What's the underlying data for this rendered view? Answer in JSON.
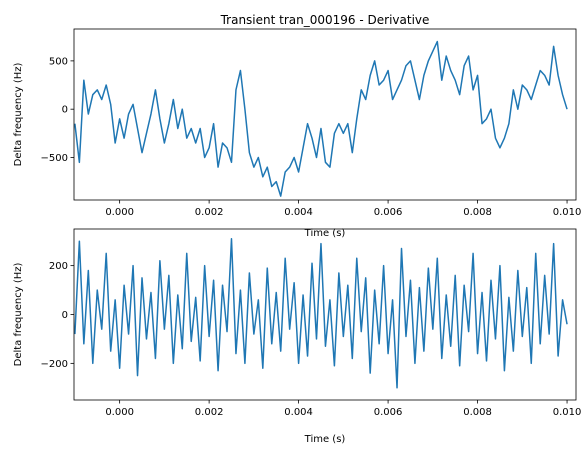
{
  "figure": {
    "background": "#ffffff"
  },
  "chart_data": [
    {
      "type": "line",
      "title": "Transient tran_000196 - Derivative",
      "xlabel": "Time (s)",
      "ylabel": "Delta frequency (Hz)",
      "xlim": [
        -0.00102,
        0.0102
      ],
      "ylim": [
        -940,
        830
      ],
      "xticks": [
        0.0,
        0.002,
        0.004,
        0.006,
        0.008,
        0.01
      ],
      "xtick_labels": [
        "0.000",
        "0.002",
        "0.004",
        "0.006",
        "0.008",
        "0.010"
      ],
      "yticks": [
        -500,
        0,
        500
      ],
      "ytick_labels": [
        "−500",
        "0",
        "500"
      ],
      "grid": false,
      "color": "#1f77b4",
      "series": [
        {
          "x": [
            -0.001,
            -0.0009,
            -0.0008,
            -0.0007,
            -0.0006,
            -0.0005,
            -0.0004,
            -0.0003,
            -0.0002,
            -0.0001,
            0.0,
            0.0001,
            0.0002,
            0.0003,
            0.0004,
            0.0005,
            0.0006,
            0.0007,
            0.0008,
            0.0009,
            0.001,
            0.0011,
            0.0012,
            0.0013,
            0.0014,
            0.0015,
            0.0016,
            0.0017,
            0.0018,
            0.0019,
            0.002,
            0.0021,
            0.0022,
            0.0023,
            0.0024,
            0.0025,
            0.0026,
            0.0027,
            0.0028,
            0.0029,
            0.003,
            0.0031,
            0.0032,
            0.0033,
            0.0034,
            0.0035,
            0.0036,
            0.0037,
            0.0038,
            0.0039,
            0.004,
            0.0041,
            0.0042,
            0.0043,
            0.0044,
            0.0045,
            0.0046,
            0.0047,
            0.0048,
            0.0049,
            0.005,
            0.0051,
            0.0052,
            0.0053,
            0.0054,
            0.0055,
            0.0056,
            0.0057,
            0.0058,
            0.0059,
            0.006,
            0.0061,
            0.0062,
            0.0063,
            0.0064,
            0.0065,
            0.0066,
            0.0067,
            0.0068,
            0.0069,
            0.007,
            0.0071,
            0.0072,
            0.0073,
            0.0074,
            0.0075,
            0.0076,
            0.0077,
            0.0078,
            0.0079,
            0.008,
            0.0081,
            0.0082,
            0.0083,
            0.0084,
            0.0085,
            0.0086,
            0.0087,
            0.0088,
            0.0089,
            0.009,
            0.0091,
            0.0092,
            0.0093,
            0.0094,
            0.0095,
            0.0096,
            0.0097,
            0.0098,
            0.0099,
            0.01
          ],
          "y": [
            -150,
            -550,
            300,
            -50,
            150,
            200,
            100,
            250,
            50,
            -350,
            -100,
            -300,
            -50,
            50,
            -200,
            -450,
            -250,
            -50,
            200,
            -100,
            -350,
            -150,
            100,
            -200,
            0,
            -300,
            -200,
            -350,
            -200,
            -500,
            -400,
            -150,
            -600,
            -350,
            -400,
            -550,
            200,
            400,
            0,
            -450,
            -600,
            -500,
            -700,
            -600,
            -800,
            -750,
            -900,
            -650,
            -600,
            -500,
            -650,
            -400,
            -150,
            -300,
            -500,
            -200,
            -550,
            -600,
            -250,
            -150,
            -250,
            -150,
            -450,
            -100,
            200,
            100,
            350,
            500,
            250,
            300,
            400,
            100,
            200,
            300,
            450,
            500,
            300,
            100,
            350,
            500,
            600,
            700,
            300,
            550,
            400,
            300,
            150,
            450,
            550,
            200,
            350,
            -150,
            -100,
            0,
            -300,
            -400,
            -300,
            -150,
            200,
            0,
            250,
            200,
            100,
            250,
            400,
            350,
            250,
            650,
            350,
            150,
            0
          ]
        }
      ]
    },
    {
      "type": "line",
      "title": "",
      "xlabel": "Time (s)",
      "ylabel": "Delta frequency (Hz)",
      "xlim": [
        -0.00102,
        0.0102
      ],
      "ylim": [
        -350,
        350
      ],
      "xticks": [
        0.0,
        0.002,
        0.004,
        0.006,
        0.008,
        0.01
      ],
      "xtick_labels": [
        "0.000",
        "0.002",
        "0.004",
        "0.006",
        "0.008",
        "0.010"
      ],
      "yticks": [
        -200,
        0,
        200
      ],
      "ytick_labels": [
        "−200",
        "0",
        "200"
      ],
      "grid": false,
      "color": "#1f77b4",
      "series": [
        {
          "x": [
            -0.001,
            -0.0009,
            -0.0008,
            -0.0007,
            -0.0006,
            -0.0005,
            -0.0004,
            -0.0003,
            -0.0002,
            -0.0001,
            0.0,
            0.0001,
            0.0002,
            0.0003,
            0.0004,
            0.0005,
            0.0006,
            0.0007,
            0.0008,
            0.0009,
            0.001,
            0.0011,
            0.0012,
            0.0013,
            0.0014,
            0.0015,
            0.0016,
            0.0017,
            0.0018,
            0.0019,
            0.002,
            0.0021,
            0.0022,
            0.0023,
            0.0024,
            0.0025,
            0.0026,
            0.0027,
            0.0028,
            0.0029,
            0.003,
            0.0031,
            0.0032,
            0.0033,
            0.0034,
            0.0035,
            0.0036,
            0.0037,
            0.0038,
            0.0039,
            0.004,
            0.0041,
            0.0042,
            0.0043,
            0.0044,
            0.0045,
            0.0046,
            0.0047,
            0.0048,
            0.0049,
            0.005,
            0.0051,
            0.0052,
            0.0053,
            0.0054,
            0.0055,
            0.0056,
            0.0057,
            0.0058,
            0.0059,
            0.006,
            0.0061,
            0.0062,
            0.0063,
            0.0064,
            0.0065,
            0.0066,
            0.0067,
            0.0068,
            0.0069,
            0.007,
            0.0071,
            0.0072,
            0.0073,
            0.0074,
            0.0075,
            0.0076,
            0.0077,
            0.0078,
            0.0079,
            0.008,
            0.0081,
            0.0082,
            0.0083,
            0.0084,
            0.0085,
            0.0086,
            0.0087,
            0.0088,
            0.0089,
            0.009,
            0.0091,
            0.0092,
            0.0093,
            0.0094,
            0.0095,
            0.0096,
            0.0097,
            0.0098,
            0.0099,
            0.01
          ],
          "y": [
            -80,
            300,
            -120,
            180,
            -200,
            100,
            -60,
            250,
            -150,
            60,
            -220,
            120,
            -80,
            200,
            -250,
            150,
            -100,
            90,
            -180,
            220,
            -60,
            160,
            -200,
            80,
            -140,
            250,
            -110,
            70,
            -190,
            200,
            -90,
            140,
            -230,
            120,
            -70,
            310,
            -160,
            100,
            -200,
            170,
            -80,
            60,
            -220,
            190,
            -120,
            90,
            -150,
            230,
            -60,
            130,
            -200,
            80,
            -170,
            210,
            -100,
            290,
            -130,
            60,
            -210,
            170,
            -90,
            120,
            -180,
            230,
            -70,
            150,
            -240,
            100,
            -120,
            200,
            -160,
            60,
            -300,
            270,
            -90,
            140,
            -200,
            110,
            -150,
            190,
            -60,
            230,
            -180,
            80,
            -130,
            160,
            -210,
            120,
            -70,
            250,
            -160,
            90,
            -190,
            140,
            -100,
            200,
            -230,
            70,
            -150,
            180,
            -90,
            110,
            -200,
            250,
            -120,
            160,
            -80,
            290,
            -170,
            60,
            -40
          ]
        }
      ]
    }
  ]
}
